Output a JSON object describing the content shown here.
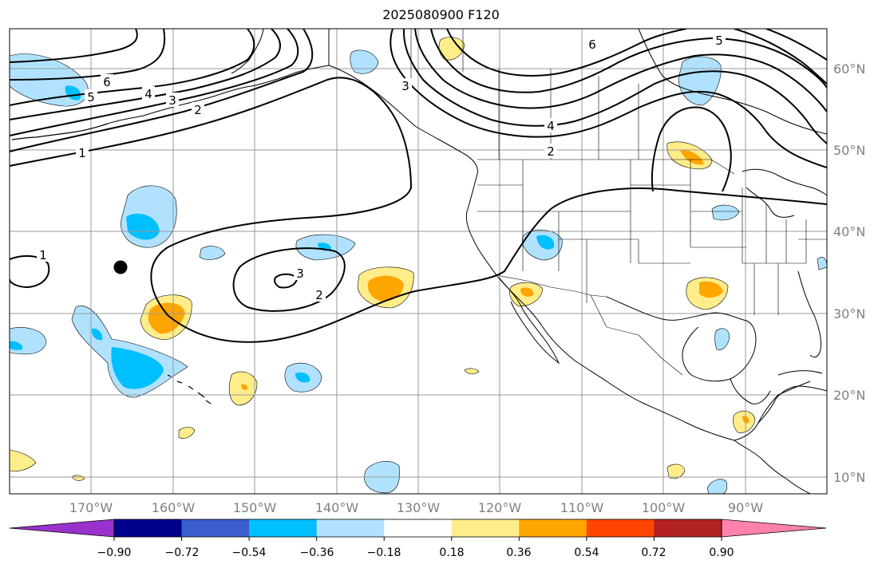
{
  "title": "2025080900 F120",
  "colors": {
    "background": "#ffffff",
    "grid": "#999999",
    "coast": "#000000",
    "contour": "#000000",
    "marker": "#000000"
  },
  "map": {
    "lon_range": [
      -180,
      -80
    ],
    "lat_range": [
      8,
      65
    ],
    "lat_labels": [
      "60°N",
      "50°N",
      "40°N",
      "30°N",
      "20°N",
      "10°N"
    ],
    "lon_labels": [
      "170°W",
      "160°W",
      "150°W",
      "140°W",
      "130°W",
      "120°W",
      "110°W",
      "100°W",
      "90°W"
    ]
  },
  "colorbar": {
    "tick_labels": [
      "−0.90",
      "−0.72",
      "−0.54",
      "−0.36",
      "−0.18",
      "0.18",
      "0.36",
      "0.54",
      "0.72",
      "0.90"
    ],
    "colors": [
      "#9932cc",
      "#00008b",
      "#3a5fcd",
      "#00bfff",
      "#b0e2ff",
      "#ffffff",
      "#ffed8a",
      "#ffa500",
      "#ff4500",
      "#b22222",
      "#ff82ab"
    ]
  },
  "contour_labels": [
    "6",
    "5",
    "4",
    "3",
    "2",
    "1",
    "1",
    "3",
    "2",
    "6",
    "5",
    "4",
    "2",
    "3"
  ],
  "marker": {
    "name": "black-dot"
  }
}
